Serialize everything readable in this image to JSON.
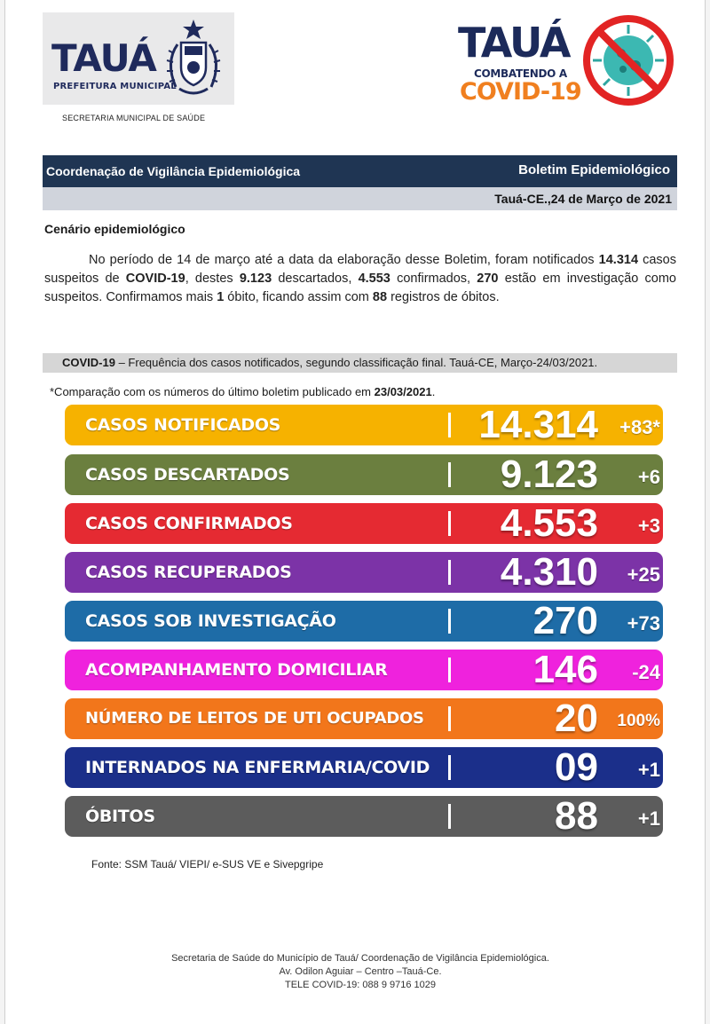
{
  "header": {
    "left_logo_word": "TAUÁ",
    "left_logo_sub": "PREFEITURA MUNICIPAL",
    "secretaria": "SECRETARIA MUNICIPAL DE SAÚDE",
    "right_logo_word": "TAUÁ",
    "right_logo_sub": "COMBATENDO A",
    "right_logo_covid": "COVID-19"
  },
  "title_bar": {
    "left": "Coordenação de Vigilância Epidemiológica",
    "right": "Boletim Epidemiológico",
    "date": "Tauá-CE.,24 de Março de 2021"
  },
  "scenario": {
    "heading": "Cenário epidemiológico",
    "p1": "No período de 14 de março até a data da elaboração desse Boletim, foram notificados ",
    "notificados": "14.314",
    "p2": " casos suspeitos de ",
    "covid": "COVID-19",
    "p3": ", destes ",
    "descartados": "9.123",
    "p4": " descartados, ",
    "confirmados": "4.553",
    "p5": " confirmados, ",
    "investigacao": "270",
    "p6": " estão em investigação como suspeitos. Confirmamos mais ",
    "obito": "1",
    "p7": " óbito, ficando assim com ",
    "obitos": "88",
    "p8": " registros de óbitos."
  },
  "caption": {
    "bold": "COVID-19",
    "text": " – Frequência dos casos notificados, segundo classificação final. Tauá-CE, Março-24/03/2021."
  },
  "comparison": {
    "text": "*Comparação com os números do último boletim publicado em ",
    "date": "23/03/2021",
    "end": "."
  },
  "stats": [
    {
      "label": "CASOS NOTIFICADOS",
      "value": "14.314",
      "delta": "+83*",
      "color": "#f6b200"
    },
    {
      "label": "CASOS DESCARTADOS",
      "value": "9.123",
      "delta": "+6",
      "color": "#6b7f3f"
    },
    {
      "label": "CASOS CONFIRMADOS",
      "value": "4.553",
      "delta": "+3",
      "color": "#e52a32"
    },
    {
      "label": "CASOS RECUPERADOS",
      "value": "4.310",
      "delta": "+25",
      "color": "#7c33a7"
    },
    {
      "label": "CASOS SOB INVESTIGAÇÃO",
      "value": "270",
      "delta": "+73",
      "color": "#1e6ca7"
    },
    {
      "label": "ACOMPANHAMENTO DOMICILIAR",
      "value": "146",
      "delta": "-24",
      "color": "#ef22dd"
    },
    {
      "label": "NÚMERO DE LEITOS DE UTI OCUPADOS",
      "value": "20",
      "delta": "100%",
      "color": "#f2761b"
    },
    {
      "label": "INTERNADOS NA ENFERMARIA/COVID",
      "value": "09",
      "delta": "+1",
      "color": "#1b2f8a"
    },
    {
      "label": "ÓBITOS",
      "value": "88",
      "delta": "+1",
      "color": "#5c5c5c"
    }
  ],
  "source": "Fonte: SSM Tauá/ VIEPI/ e-SUS VE e Sivepgripe",
  "footer": {
    "line1": "Secretaria de Saúde do Município de Tauá/ Coordenação de Vigilância Epidemiológica.",
    "line2": "Av. Odilon Aguiar – Centro –Tauá-Ce.",
    "line3": "TELE COVID-19: 088 9 9716 1029"
  }
}
